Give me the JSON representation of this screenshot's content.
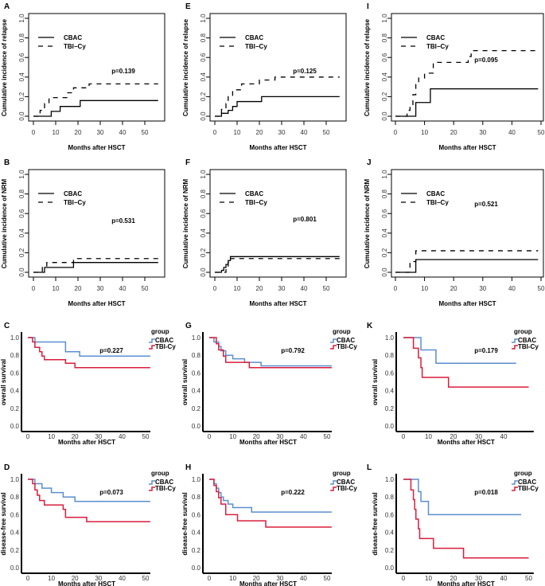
{
  "colors": {
    "CBAC": "#5b8fd0",
    "TBI-Cy": "#d91e3c",
    "black": "#000000"
  },
  "chart_data": [
    {
      "panel": "A",
      "type": "line",
      "style": "cumulative-incidence",
      "ylabel": "Cumulative incidence of relapse",
      "xlabel": "Months after HSCT",
      "p": "p=0.139",
      "legend": [
        "CBAC",
        "TBI−Cy"
      ],
      "xticks": [
        "0",
        "10",
        "20",
        "30",
        "40",
        "50"
      ],
      "yticks": [
        "0.0",
        "0.2",
        "0.4",
        "0.6",
        "0.8",
        "1.0"
      ],
      "xlim": [
        0,
        56
      ],
      "ylim": [
        0,
        1
      ],
      "series": [
        {
          "name": "CBAC",
          "steps": [
            [
              0,
              0
            ],
            [
              8,
              0.05
            ],
            [
              12,
              0.1
            ],
            [
              21,
              0.16
            ]
          ],
          "end": 56
        },
        {
          "name": "TBI-Cy",
          "steps": [
            [
              0,
              0
            ],
            [
              3,
              0.06
            ],
            [
              5,
              0.13
            ],
            [
              7,
              0.19
            ],
            [
              15,
              0.24
            ],
            [
              18,
              0.29
            ],
            [
              25,
              0.33
            ]
          ],
          "end": 56
        }
      ]
    },
    {
      "panel": "B",
      "type": "line",
      "style": "cumulative-incidence",
      "ylabel": "Cumulative incidence of NRM",
      "xlabel": "Months after HSCT",
      "p": "p=0.531",
      "legend": [
        "CBAC",
        "TBI−Cy"
      ],
      "xticks": [
        "0",
        "10",
        "20",
        "30",
        "40",
        "50"
      ],
      "yticks": [
        "0.0",
        "0.2",
        "0.4",
        "0.6",
        "0.8",
        "1.0"
      ],
      "xlim": [
        0,
        56
      ],
      "ylim": [
        0,
        1
      ],
      "series": [
        {
          "name": "CBAC",
          "steps": [
            [
              0,
              0
            ],
            [
              5,
              0.05
            ],
            [
              18,
              0.1
            ]
          ],
          "end": 56
        },
        {
          "name": "TBI-Cy",
          "steps": [
            [
              0,
              0
            ],
            [
              4,
              0.05
            ],
            [
              6,
              0.1
            ],
            [
              18,
              0.14
            ]
          ],
          "end": 56
        }
      ]
    },
    {
      "panel": "C",
      "type": "line",
      "style": "survival",
      "ylabel": "overall survival",
      "xlabel": "Months after HSCT",
      "p": "p=0.227",
      "legend_title": "group",
      "legend": [
        "CBAC",
        "TBI-Cy"
      ],
      "xticks": [
        "0",
        "10",
        "20",
        "30",
        "40",
        "50"
      ],
      "yticks": [
        "0.0",
        "0.2",
        "0.4",
        "0.6",
        "0.8",
        "1.0"
      ],
      "xlim": [
        0,
        52
      ],
      "ylim": [
        0,
        1
      ],
      "series": [
        {
          "name": "CBAC",
          "steps": [
            [
              0,
              1
            ],
            [
              3,
              0.95
            ],
            [
              16,
              0.84
            ],
            [
              22,
              0.79
            ]
          ],
          "end": 52
        },
        {
          "name": "TBI-Cy",
          "steps": [
            [
              0,
              1
            ],
            [
              2,
              0.95
            ],
            [
              3,
              0.89
            ],
            [
              5,
              0.84
            ],
            [
              6,
              0.79
            ],
            [
              7,
              0.75
            ],
            [
              16,
              0.71
            ],
            [
              20,
              0.66
            ]
          ],
          "end": 52
        }
      ]
    },
    {
      "panel": "D",
      "type": "line",
      "style": "survival",
      "ylabel": "disease-free survival",
      "xlabel": "Months after HSCT",
      "p": "p=0.073",
      "legend_title": "group",
      "legend": [
        "CBAC",
        "TBI-Cy"
      ],
      "xticks": [
        "0",
        "10",
        "20",
        "30",
        "40",
        "50"
      ],
      "yticks": [
        "0.0",
        "0.2",
        "0.4",
        "0.6",
        "0.8",
        "1.0"
      ],
      "xlim": [
        0,
        52
      ],
      "ylim": [
        0,
        1
      ],
      "series": [
        {
          "name": "CBAC",
          "steps": [
            [
              0,
              1
            ],
            [
              3,
              0.95
            ],
            [
              6,
              0.9
            ],
            [
              10,
              0.85
            ],
            [
              15,
              0.8
            ],
            [
              20,
              0.75
            ]
          ],
          "end": 52
        },
        {
          "name": "TBI-Cy",
          "steps": [
            [
              0,
              1
            ],
            [
              2,
              0.95
            ],
            [
              3,
              0.88
            ],
            [
              4,
              0.82
            ],
            [
              5,
              0.76
            ],
            [
              7,
              0.71
            ],
            [
              15,
              0.66
            ],
            [
              16,
              0.57
            ],
            [
              25,
              0.52
            ]
          ],
          "end": 52
        }
      ]
    },
    {
      "panel": "E",
      "type": "line",
      "style": "cumulative-incidence",
      "ylabel": "Cumulative incidence of relapse",
      "xlabel": "Months after HSCT",
      "p": "p=0.125",
      "legend": [
        "CBAC",
        "TBI−Cy"
      ],
      "xticks": [
        "0",
        "10",
        "20",
        "30",
        "40",
        "50"
      ],
      "yticks": [
        "0.0",
        "0.2",
        "0.4",
        "0.6",
        "0.8",
        "1.0"
      ],
      "xlim": [
        0,
        56
      ],
      "ylim": [
        0,
        1
      ],
      "series": [
        {
          "name": "CBAC",
          "steps": [
            [
              0,
              0
            ],
            [
              3,
              0.03
            ],
            [
              6,
              0.06
            ],
            [
              8,
              0.1
            ],
            [
              10,
              0.15
            ],
            [
              21,
              0.2
            ]
          ],
          "end": 56
        },
        {
          "name": "TBI-Cy",
          "steps": [
            [
              0,
              0
            ],
            [
              3,
              0.07
            ],
            [
              5,
              0.13
            ],
            [
              6,
              0.2
            ],
            [
              8,
              0.27
            ],
            [
              12,
              0.33
            ],
            [
              20,
              0.37
            ],
            [
              27,
              0.4
            ]
          ],
          "end": 56
        }
      ]
    },
    {
      "panel": "F",
      "type": "line",
      "style": "cumulative-incidence",
      "ylabel": "Cumulative incidence of NRM",
      "xlabel": "Months after HSCT",
      "p": "p=0.801",
      "legend": [
        "CBAC",
        "TBI−Cy"
      ],
      "xticks": [
        "0",
        "10",
        "20",
        "30",
        "40",
        "50"
      ],
      "yticks": [
        "0.0",
        "0.2",
        "0.4",
        "0.6",
        "0.8",
        "1.0"
      ],
      "xlim": [
        0,
        56
      ],
      "ylim": [
        0,
        1
      ],
      "series": [
        {
          "name": "CBAC",
          "steps": [
            [
              0,
              0
            ],
            [
              3,
              0.02
            ],
            [
              4,
              0.05
            ],
            [
              5,
              0.08
            ],
            [
              6,
              0.12
            ],
            [
              7,
              0.16
            ]
          ],
          "end": 56
        },
        {
          "name": "TBI-Cy",
          "steps": [
            [
              0,
              0
            ],
            [
              5,
              0.05
            ],
            [
              6,
              0.1
            ],
            [
              7,
              0.14
            ]
          ],
          "end": 56
        }
      ]
    },
    {
      "panel": "G",
      "type": "line",
      "style": "survival",
      "ylabel": "overall survival",
      "xlabel": "Months after HSCT",
      "p": "p=0.792",
      "legend_title": "group",
      "legend": [
        "CBAC",
        "TBI-Cy"
      ],
      "xticks": [
        "0",
        "10",
        "20",
        "30",
        "40",
        "50"
      ],
      "yticks": [
        "0.0",
        "0.2",
        "0.4",
        "0.6",
        "0.8",
        "1.0"
      ],
      "xlim": [
        0,
        52
      ],
      "ylim": [
        0,
        1
      ],
      "series": [
        {
          "name": "CBAC",
          "steps": [
            [
              0,
              1
            ],
            [
              2,
              0.95
            ],
            [
              4,
              0.9
            ],
            [
              5,
              0.85
            ],
            [
              7,
              0.8
            ],
            [
              10,
              0.76
            ],
            [
              15,
              0.72
            ],
            [
              22,
              0.68
            ]
          ],
          "end": 52
        },
        {
          "name": "TBI-Cy",
          "steps": [
            [
              0,
              1
            ],
            [
              3,
              0.93
            ],
            [
              4,
              0.86
            ],
            [
              6,
              0.79
            ],
            [
              7,
              0.72
            ],
            [
              17,
              0.66
            ]
          ],
          "end": 52
        }
      ]
    },
    {
      "panel": "H",
      "type": "line",
      "style": "survival",
      "ylabel": "disease-free survival",
      "xlabel": "Months after HSCT",
      "p": "p=0.222",
      "legend_title": "group",
      "legend": [
        "CBAC",
        "TBI-Cy"
      ],
      "xticks": [
        "0",
        "10",
        "20",
        "30",
        "40",
        "50"
      ],
      "yticks": [
        "0.0",
        "0.2",
        "0.4",
        "0.6",
        "0.8",
        "1.0"
      ],
      "xlim": [
        0,
        52
      ],
      "ylim": [
        0,
        1
      ],
      "series": [
        {
          "name": "CBAC",
          "steps": [
            [
              0,
              1
            ],
            [
              2,
              0.95
            ],
            [
              3,
              0.9
            ],
            [
              4,
              0.85
            ],
            [
              5,
              0.8
            ],
            [
              6,
              0.76
            ],
            [
              8,
              0.72
            ],
            [
              10,
              0.68
            ],
            [
              18,
              0.63
            ]
          ],
          "end": 52
        },
        {
          "name": "TBI-Cy",
          "steps": [
            [
              0,
              1
            ],
            [
              2,
              0.93
            ],
            [
              3,
              0.86
            ],
            [
              4,
              0.79
            ],
            [
              5,
              0.72
            ],
            [
              7,
              0.6
            ],
            [
              12,
              0.53
            ],
            [
              24,
              0.46
            ]
          ],
          "end": 52
        }
      ]
    },
    {
      "panel": "I",
      "type": "line",
      "style": "cumulative-incidence",
      "ylabel": "Cumulative incidence of relapse",
      "xlabel": "Months after HSCT",
      "p": "p=0.095",
      "legend": [
        "CBAC",
        "TBI−Cy"
      ],
      "xticks": [
        "0",
        "10",
        "20",
        "30",
        "40",
        "50"
      ],
      "yticks": [
        "0.0",
        "0.2",
        "0.4",
        "0.6",
        "0.8",
        "1.0"
      ],
      "xlim": [
        0,
        50
      ],
      "ylim": [
        0,
        1
      ],
      "series": [
        {
          "name": "CBAC",
          "steps": [
            [
              0,
              0
            ],
            [
              7,
              0.14
            ],
            [
              12,
              0.28
            ]
          ],
          "end": 49
        },
        {
          "name": "TBI-Cy",
          "steps": [
            [
              0,
              0
            ],
            [
              4,
              0.06
            ],
            [
              5,
              0.11
            ],
            [
              6,
              0.22
            ],
            [
              7,
              0.33
            ],
            [
              8,
              0.39
            ],
            [
              10,
              0.44
            ],
            [
              13,
              0.55
            ],
            [
              21,
              0.55
            ],
            [
              25,
              0.61
            ],
            [
              26,
              0.67
            ]
          ],
          "end": 49
        }
      ]
    },
    {
      "panel": "J",
      "type": "line",
      "style": "cumulative-incidence",
      "ylabel": "Cumulative incidence of NRM",
      "xlabel": "Months after HSCT",
      "p": "p=0.521",
      "legend": [
        "CBAC",
        "TBI−Cy"
      ],
      "xticks": [
        "0",
        "10",
        "20",
        "30",
        "40",
        "50"
      ],
      "yticks": [
        "0.0",
        "0.2",
        "0.4",
        "0.6",
        "0.8",
        "1.0"
      ],
      "xlim": [
        0,
        50
      ],
      "ylim": [
        0,
        1
      ],
      "series": [
        {
          "name": "CBAC",
          "steps": [
            [
              0,
              0
            ],
            [
              7,
              0.13
            ]
          ],
          "end": 49
        },
        {
          "name": "TBI-Cy",
          "steps": [
            [
              0,
              0
            ],
            [
              5,
              0.11
            ],
            [
              7,
              0.22
            ]
          ],
          "end": 49
        }
      ]
    },
    {
      "panel": "K",
      "type": "line",
      "style": "survival",
      "ylabel": "overall survival",
      "xlabel": "Months after HSCT",
      "p": "p=0.179",
      "legend_title": "group",
      "legend": [
        "CBAC",
        "TBI-Cy"
      ],
      "xticks": [
        "0",
        "10",
        "20",
        "30",
        "40"
      ],
      "yticks": [
        "0.0",
        "0.2",
        "0.4",
        "0.6",
        "0.8",
        "1.0"
      ],
      "xlim": [
        0,
        50
      ],
      "ylim": [
        0,
        1
      ],
      "series": [
        {
          "name": "CBAC",
          "steps": [
            [
              0,
              1
            ],
            [
              7,
              0.86
            ],
            [
              13,
              0.71
            ]
          ],
          "end": 45
        },
        {
          "name": "TBI-Cy",
          "steps": [
            [
              0,
              1
            ],
            [
              4,
              0.88
            ],
            [
              6,
              0.77
            ],
            [
              7,
              0.66
            ],
            [
              7.5,
              0.55
            ],
            [
              18,
              0.44
            ]
          ],
          "end": 50
        }
      ]
    },
    {
      "panel": "L",
      "type": "line",
      "style": "survival",
      "ylabel": "disease-free survival",
      "xlabel": "Months after HSCT",
      "p": "p=0.018",
      "legend_title": "group",
      "legend": [
        "CBAC",
        "TBI-Cy"
      ],
      "xticks": [
        "0",
        "10",
        "20",
        "30",
        "40",
        "50"
      ],
      "yticks": [
        "0.0",
        "0.2",
        "0.4",
        "0.6",
        "0.8",
        "1.0"
      ],
      "xlim": [
        0,
        50
      ],
      "ylim": [
        0,
        1
      ],
      "series": [
        {
          "name": "CBAC",
          "steps": [
            [
              0,
              1
            ],
            [
              6,
              0.86
            ],
            [
              7,
              0.75
            ],
            [
              10,
              0.6
            ]
          ],
          "end": 47
        },
        {
          "name": "TBI-Cy",
          "steps": [
            [
              0,
              1
            ],
            [
              3,
              0.88
            ],
            [
              4,
              0.77
            ],
            [
              4.5,
              0.66
            ],
            [
              5,
              0.55
            ],
            [
              6,
              0.44
            ],
            [
              6.5,
              0.33
            ],
            [
              12,
              0.22
            ],
            [
              24,
              0.11
            ]
          ],
          "end": 50
        }
      ]
    }
  ]
}
